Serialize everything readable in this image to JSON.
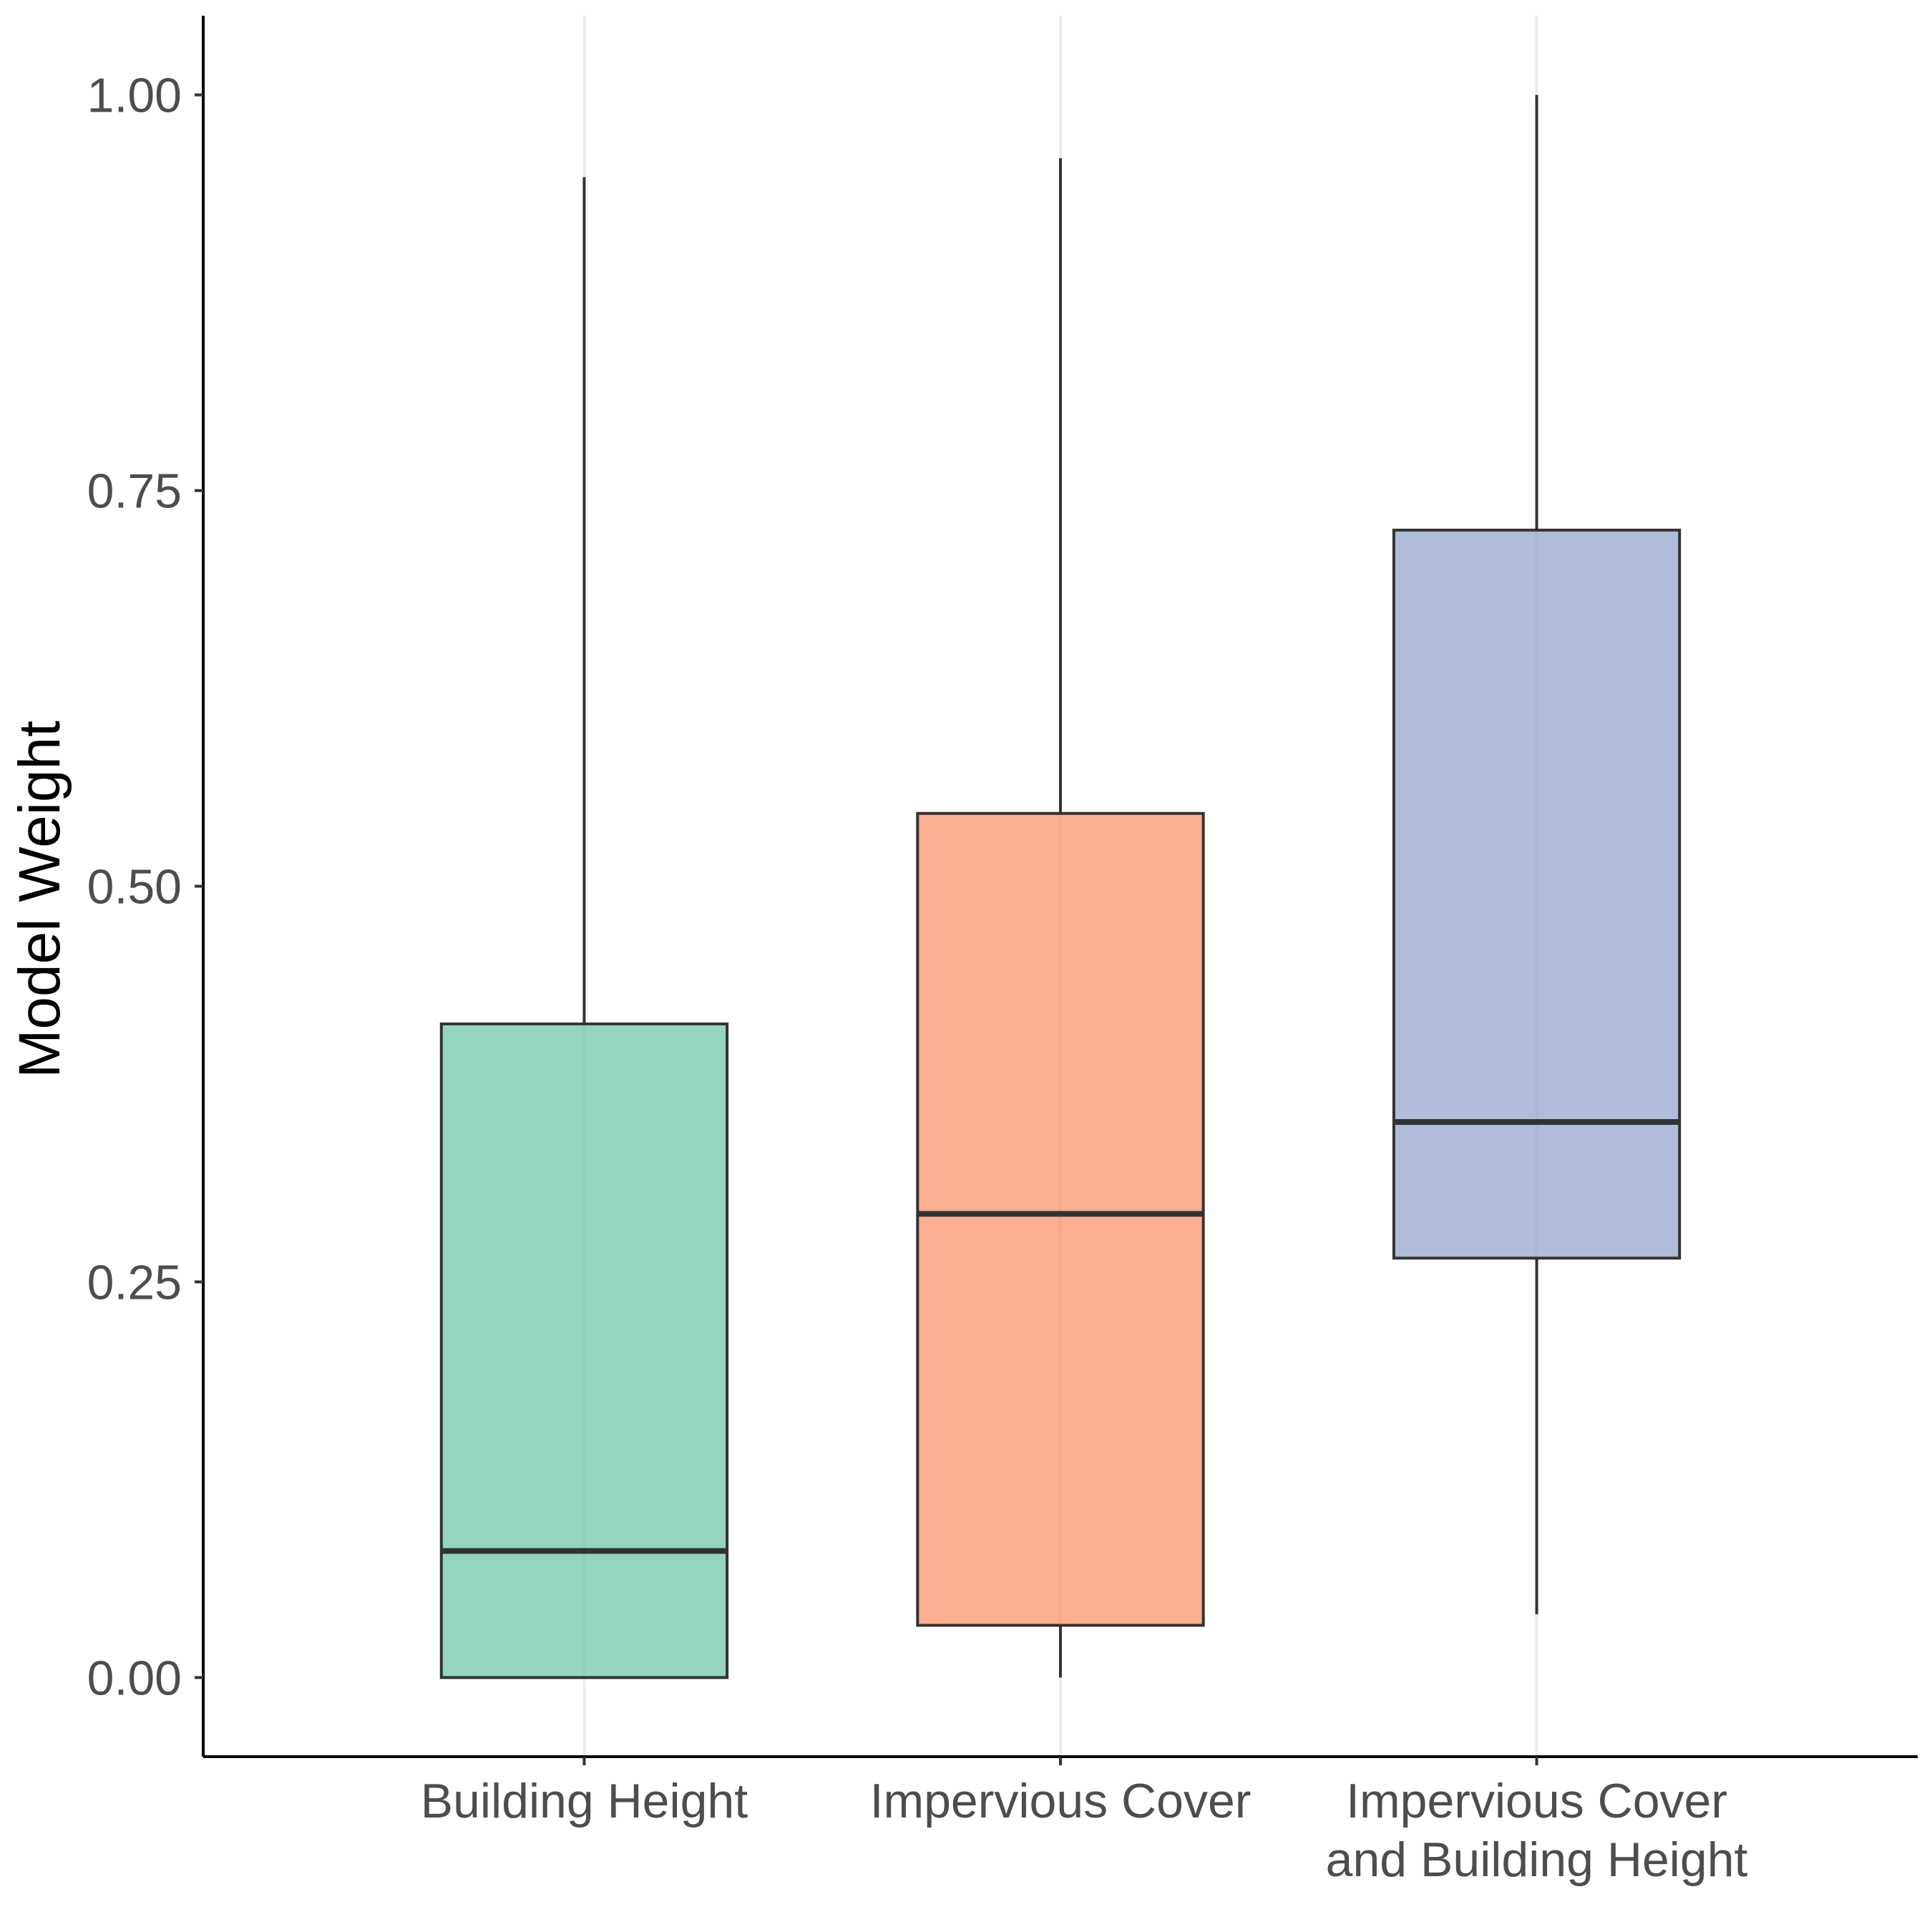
{
  "chart_data": {
    "type": "box",
    "title": "",
    "xlabel": "",
    "ylabel": "Model Weight",
    "ylim": [
      -0.05,
      1.05
    ],
    "grid": {
      "x_major": true,
      "y_major": false
    },
    "legend": "none",
    "y_ticks": [
      {
        "value": 0.0,
        "label": "0.00"
      },
      {
        "value": 0.25,
        "label": "0.25"
      },
      {
        "value": 0.5,
        "label": "0.50"
      },
      {
        "value": 0.75,
        "label": "0.75"
      },
      {
        "value": 1.0,
        "label": "1.00"
      }
    ],
    "categories": [
      {
        "label_lines": [
          "Building Height"
        ],
        "whisker_low": 0.0,
        "q1": 0.0,
        "median": 0.08,
        "q3": 0.413,
        "whisker_high": 0.948,
        "color": "#66c2a5"
      },
      {
        "label_lines": [
          "Impervious Cover"
        ],
        "whisker_low": 0.0,
        "q1": 0.033,
        "median": 0.293,
        "q3": 0.546,
        "whisker_high": 0.96,
        "color": "#fc8d62"
      },
      {
        "label_lines": [
          "Impervious Cover",
          "and Building Height"
        ],
        "whisker_low": 0.04,
        "q1": 0.265,
        "median": 0.351,
        "q3": 0.725,
        "whisker_high": 1.0,
        "color": "#8da0cb"
      }
    ]
  }
}
